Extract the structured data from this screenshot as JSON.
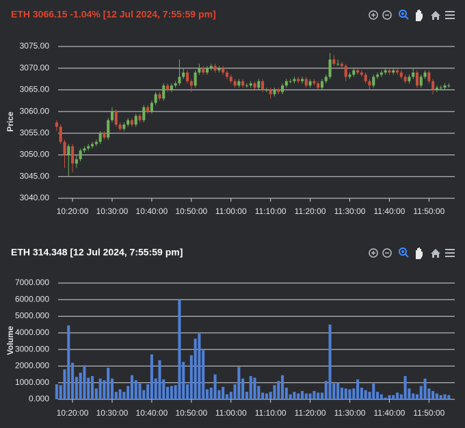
{
  "chart_data": [
    {
      "type": "candlestick",
      "title": "ETH 3066.15 -1.04% [12 Jul 2024, 7:55:59 pm]",
      "title_color": "#e0442c",
      "ylabel": "Price",
      "up_color": "#6fb35a",
      "down_color": "#c9503e",
      "grid": true,
      "x": [
        "10:16:00",
        "10:17:00",
        "10:18:00",
        "10:19:00",
        "10:20:00",
        "10:21:00",
        "10:22:00",
        "10:23:00",
        "10:24:00",
        "10:25:00",
        "10:26:00",
        "10:27:00",
        "10:28:00",
        "10:29:00",
        "10:30:00",
        "10:31:00",
        "10:32:00",
        "10:33:00",
        "10:34:00",
        "10:35:00",
        "10:36:00",
        "10:37:00",
        "10:38:00",
        "10:39:00",
        "10:40:00",
        "10:41:00",
        "10:42:00",
        "10:43:00",
        "10:44:00",
        "10:45:00",
        "10:46:00",
        "10:47:00",
        "10:48:00",
        "10:49:00",
        "10:50:00",
        "10:51:00",
        "10:52:00",
        "10:53:00",
        "10:54:00",
        "10:55:00",
        "10:56:00",
        "10:57:00",
        "10:58:00",
        "10:59:00",
        "11:00:00",
        "11:01:00",
        "11:02:00",
        "11:03:00",
        "11:04:00",
        "11:05:00",
        "11:06:00",
        "11:07:00",
        "11:08:00",
        "11:09:00",
        "11:10:00",
        "11:11:00",
        "11:12:00",
        "11:13:00",
        "11:14:00",
        "11:15:00",
        "11:16:00",
        "11:17:00",
        "11:18:00",
        "11:19:00",
        "11:20:00",
        "11:21:00",
        "11:22:00",
        "11:23:00",
        "11:24:00",
        "11:25:00",
        "11:26:00",
        "11:27:00",
        "11:28:00",
        "11:29:00",
        "11:30:00",
        "11:31:00",
        "11:32:00",
        "11:33:00",
        "11:34:00",
        "11:35:00",
        "11:36:00",
        "11:37:00",
        "11:38:00",
        "11:39:00",
        "11:40:00",
        "11:41:00",
        "11:42:00",
        "11:43:00",
        "11:44:00",
        "11:45:00",
        "11:46:00",
        "11:47:00",
        "11:48:00",
        "11:49:00",
        "11:50:00",
        "11:51:00",
        "11:52:00",
        "11:53:00",
        "11:54:00",
        "11:55:00"
      ],
      "open": [
        3057.5,
        3056.5,
        3053,
        3050,
        3052,
        3048,
        3049,
        3051,
        3051.5,
        3052,
        3052.5,
        3053,
        3055,
        3054,
        3058,
        3060,
        3057,
        3056,
        3057,
        3058,
        3057,
        3059,
        3058,
        3061,
        3060,
        3062,
        3064,
        3063,
        3066,
        3065,
        3066,
        3066.5,
        3068,
        3069,
        3067,
        3066,
        3069,
        3070,
        3069,
        3070,
        3070.5,
        3069.5,
        3070,
        3069,
        3068,
        3067,
        3066,
        3067,
        3066,
        3066,
        3066.5,
        3065.5,
        3067,
        3065,
        3065,
        3064,
        3065,
        3064.5,
        3066,
        3067,
        3067,
        3067.5,
        3067,
        3067.5,
        3066,
        3067,
        3066.5,
        3065.5,
        3067,
        3068,
        3072,
        3071,
        3071,
        3070.5,
        3068,
        3068.5,
        3069.5,
        3069,
        3068.5,
        3067,
        3066,
        3068,
        3068.5,
        3069,
        3069.5,
        3069,
        3069.5,
        3069,
        3068,
        3067,
        3068,
        3069,
        3066,
        3068,
        3069,
        3067,
        3065,
        3065.5,
        3065.5,
        3066
      ],
      "high": [
        3058,
        3057,
        3053.5,
        3052.5,
        3052.5,
        3050,
        3051.5,
        3052,
        3052.5,
        3053,
        3053.5,
        3055.5,
        3055.5,
        3058.5,
        3061,
        3060.5,
        3057.5,
        3057.5,
        3058.5,
        3058.5,
        3059.5,
        3059.5,
        3061.5,
        3061.5,
        3062.5,
        3064.5,
        3064.5,
        3066.5,
        3066.5,
        3066.5,
        3067,
        3072,
        3070,
        3069.5,
        3067.5,
        3069.5,
        3071,
        3070.5,
        3070.5,
        3071,
        3071,
        3070.5,
        3070.5,
        3069.5,
        3068.5,
        3067.5,
        3067.5,
        3067.5,
        3066.5,
        3067,
        3067,
        3067.5,
        3067.5,
        3065.5,
        3065.5,
        3065.5,
        3065.5,
        3066.5,
        3067.5,
        3067.5,
        3068,
        3068,
        3068,
        3068,
        3067.5,
        3067.5,
        3067,
        3067.5,
        3068.5,
        3073.5,
        3073,
        3072,
        3071.5,
        3071,
        3069,
        3070,
        3070,
        3069.5,
        3069,
        3067.5,
        3068.5,
        3069,
        3069.5,
        3070,
        3070,
        3070,
        3070,
        3069.5,
        3068.5,
        3068.5,
        3070,
        3069.5,
        3068.5,
        3069.5,
        3069.5,
        3067.5,
        3066,
        3066,
        3066.5,
        3066.5
      ],
      "low": [
        3055.5,
        3052.5,
        3047,
        3045,
        3046,
        3047,
        3048.5,
        3050.5,
        3051,
        3051.5,
        3052,
        3052.5,
        3053.5,
        3053.5,
        3057.5,
        3056.5,
        3055.5,
        3055.5,
        3056.5,
        3056.5,
        3056.5,
        3057.5,
        3057.5,
        3059.5,
        3059.5,
        3061.5,
        3062.5,
        3062.5,
        3064.5,
        3064.5,
        3065.5,
        3066,
        3067.5,
        3066.5,
        3064.5,
        3065.5,
        3068.5,
        3068.5,
        3068.5,
        3069.5,
        3069,
        3069,
        3068.5,
        3067.5,
        3066.5,
        3065.5,
        3065.5,
        3065.5,
        3065.5,
        3065.5,
        3065,
        3065,
        3064.5,
        3064.5,
        3063,
        3063.5,
        3064,
        3064,
        3065.5,
        3066.5,
        3066.5,
        3066.5,
        3066.5,
        3065.5,
        3065.5,
        3066,
        3065,
        3065,
        3066.5,
        3067.5,
        3070.5,
        3070.5,
        3070,
        3067,
        3067.5,
        3068,
        3068.5,
        3068,
        3066.5,
        3065,
        3065.5,
        3067.5,
        3068,
        3068.5,
        3068.5,
        3068.5,
        3068.5,
        3067.5,
        3066.5,
        3066.5,
        3067.5,
        3065.5,
        3065.5,
        3067.5,
        3066.5,
        3064,
        3064.5,
        3065,
        3065,
        3065.5
      ],
      "close": [
        3056.5,
        3053,
        3050,
        3052,
        3048,
        3049,
        3051,
        3051.5,
        3052,
        3052.5,
        3053,
        3055,
        3054,
        3058,
        3060,
        3057,
        3056,
        3057,
        3058,
        3057,
        3059,
        3058,
        3061,
        3060,
        3062,
        3064,
        3063,
        3066,
        3065,
        3066,
        3066.5,
        3068,
        3069,
        3067,
        3066,
        3069,
        3070,
        3069,
        3070,
        3070.5,
        3069.5,
        3070,
        3069,
        3068,
        3067,
        3066,
        3067,
        3066,
        3066,
        3066.5,
        3065.5,
        3067,
        3065,
        3065,
        3064,
        3065,
        3064.5,
        3066,
        3067,
        3067,
        3067.5,
        3067,
        3067.5,
        3066,
        3067,
        3066.5,
        3065.5,
        3067,
        3068,
        3072,
        3071,
        3071,
        3070.5,
        3068,
        3068.5,
        3069.5,
        3069,
        3068.5,
        3067,
        3066,
        3068,
        3068.5,
        3069,
        3069.5,
        3069,
        3069.5,
        3069,
        3068,
        3067,
        3068,
        3069,
        3066,
        3068,
        3069,
        3067,
        3065,
        3065.5,
        3065.5,
        3066,
        3066
      ],
      "xlim": [
        "10:15:30",
        "11:56:30"
      ],
      "xticks": [
        "10:20:00",
        "10:30:00",
        "10:40:00",
        "10:50:00",
        "11:00:00",
        "11:10:00",
        "11:20:00",
        "11:30:00",
        "11:40:00",
        "11:50:00"
      ],
      "ylim": [
        3040,
        3075
      ],
      "yticks": [
        {
          "value": 3040,
          "label": "3040.00"
        },
        {
          "value": 3045,
          "label": "3045.00"
        },
        {
          "value": 3050,
          "label": "3050.00"
        },
        {
          "value": 3055,
          "label": "3055.00"
        },
        {
          "value": 3060,
          "label": "3060.00"
        },
        {
          "value": 3065,
          "label": "3065.00"
        },
        {
          "value": 3070,
          "label": "3070.00"
        },
        {
          "value": 3075,
          "label": "3075.00"
        }
      ]
    },
    {
      "type": "bar",
      "title": "ETH 314.348 [12 Jul 2024, 7:55:59 pm]",
      "title_color": "#ffffff",
      "ylabel": "Volume",
      "color": "#4f80d6",
      "grid": true,
      "x": [
        "10:16:00",
        "10:17:00",
        "10:18:00",
        "10:19:00",
        "10:20:00",
        "10:21:00",
        "10:22:00",
        "10:23:00",
        "10:24:00",
        "10:25:00",
        "10:26:00",
        "10:27:00",
        "10:28:00",
        "10:29:00",
        "10:30:00",
        "10:31:00",
        "10:32:00",
        "10:33:00",
        "10:34:00",
        "10:35:00",
        "10:36:00",
        "10:37:00",
        "10:38:00",
        "10:39:00",
        "10:40:00",
        "10:41:00",
        "10:42:00",
        "10:43:00",
        "10:44:00",
        "10:45:00",
        "10:46:00",
        "10:47:00",
        "10:48:00",
        "10:49:00",
        "10:50:00",
        "10:51:00",
        "10:52:00",
        "10:53:00",
        "10:54:00",
        "10:55:00",
        "10:56:00",
        "10:57:00",
        "10:58:00",
        "10:59:00",
        "11:00:00",
        "11:01:00",
        "11:02:00",
        "11:03:00",
        "11:04:00",
        "11:05:00",
        "11:06:00",
        "11:07:00",
        "11:08:00",
        "11:09:00",
        "11:10:00",
        "11:11:00",
        "11:12:00",
        "11:13:00",
        "11:14:00",
        "11:15:00",
        "11:16:00",
        "11:17:00",
        "11:18:00",
        "11:19:00",
        "11:20:00",
        "11:21:00",
        "11:22:00",
        "11:23:00",
        "11:24:00",
        "11:25:00",
        "11:26:00",
        "11:27:00",
        "11:28:00",
        "11:29:00",
        "11:30:00",
        "11:31:00",
        "11:32:00",
        "11:33:00",
        "11:34:00",
        "11:35:00",
        "11:36:00",
        "11:37:00",
        "11:38:00",
        "11:39:00",
        "11:40:00",
        "11:41:00",
        "11:42:00",
        "11:43:00",
        "11:44:00",
        "11:45:00",
        "11:46:00",
        "11:47:00",
        "11:48:00",
        "11:49:00",
        "11:50:00",
        "11:51:00",
        "11:52:00",
        "11:53:00",
        "11:54:00",
        "11:55:00"
      ],
      "values": [
        900,
        850,
        1800,
        4450,
        2200,
        1350,
        1600,
        2050,
        1300,
        1400,
        650,
        1250,
        1150,
        1900,
        1250,
        450,
        600,
        450,
        800,
        1450,
        1150,
        950,
        550,
        900,
        2700,
        1250,
        2350,
        1200,
        750,
        800,
        850,
        6000,
        2250,
        900,
        2650,
        3650,
        3950,
        2950,
        600,
        700,
        1500,
        550,
        750,
        300,
        450,
        900,
        1950,
        1250,
        450,
        1400,
        1300,
        800,
        400,
        350,
        450,
        850,
        1100,
        1450,
        700,
        300,
        450,
        350,
        500,
        350,
        350,
        500,
        400,
        400,
        1100,
        4500,
        950,
        1000,
        700,
        650,
        600,
        650,
        1200,
        700,
        550,
        450,
        950,
        450,
        300,
        100,
        250,
        250,
        400,
        300,
        1400,
        650,
        350,
        300,
        800,
        1250,
        650,
        500,
        350,
        250,
        300,
        250
      ],
      "xlim": [
        "10:15:30",
        "11:56:30"
      ],
      "xticks": [
        "10:20:00",
        "10:30:00",
        "10:40:00",
        "10:50:00",
        "11:00:00",
        "11:10:00",
        "11:20:00",
        "11:30:00",
        "11:40:00",
        "11:50:00"
      ],
      "ylim": [
        0,
        7000
      ],
      "yticks": [
        {
          "value": 0,
          "label": "0.000"
        },
        {
          "value": 1000,
          "label": "1000.000"
        },
        {
          "value": 2000,
          "label": "2000.000"
        },
        {
          "value": 3000,
          "label": "3000.000"
        },
        {
          "value": 4000,
          "label": "4000.000"
        },
        {
          "value": 5000,
          "label": "5000.000"
        },
        {
          "value": 6000,
          "label": "6000.000"
        },
        {
          "value": 7000,
          "label": "7000.000"
        }
      ]
    }
  ]
}
